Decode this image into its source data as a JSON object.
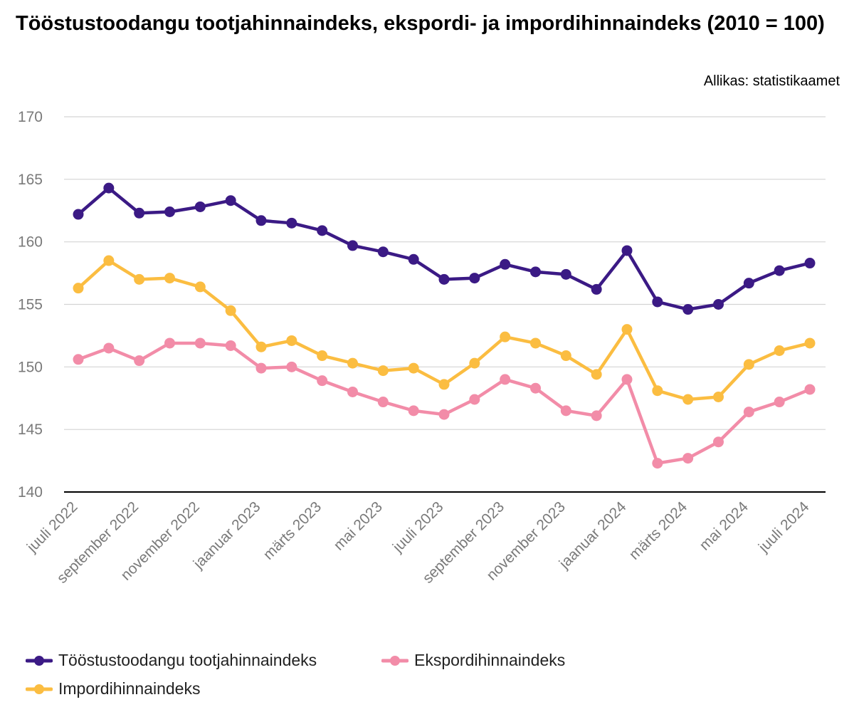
{
  "title": "Tööstustoodangu tootjahinnaindeks, ekspordi- ja impordihinnaindeks (2010 = 100)",
  "source": "Allikas: statistikaamet",
  "chart_data": {
    "type": "line",
    "x": [
      "juuli 2022",
      "august 2022",
      "september 2022",
      "oktoober 2022",
      "november 2022",
      "detsember 2022",
      "jaanuar 2023",
      "veebruar 2023",
      "märts 2023",
      "aprill 2023",
      "mai 2023",
      "juuni 2023",
      "juuli 2023",
      "august 2023",
      "september 2023",
      "oktoober 2023",
      "november 2023",
      "detsember 2023",
      "jaanuar 2024",
      "veebruar 2024",
      "märts 2024",
      "aprill 2024",
      "mai 2024",
      "juuni 2024",
      "juuli 2024"
    ],
    "x_tick_labels": [
      "juuli 2022",
      "september 2022",
      "november 2022",
      "jaanuar 2023",
      "märts 2023",
      "mai 2023",
      "juuli 2023",
      "september 2023",
      "november 2023",
      "jaanuar 2024",
      "märts 2024",
      "mai 2024",
      "juuli 2024"
    ],
    "ylim": [
      140,
      170
    ],
    "yticks": [
      140,
      145,
      150,
      155,
      160,
      165,
      170
    ],
    "grid": true,
    "legend_position": "bottom",
    "series": [
      {
        "name": "Tööstustoodangu tootjahinnaindeks",
        "color": "#3b1a85",
        "values": [
          162.2,
          164.3,
          162.3,
          162.4,
          162.8,
          163.3,
          161.7,
          161.5,
          160.9,
          159.7,
          159.2,
          158.6,
          157.0,
          157.1,
          158.2,
          157.6,
          157.4,
          156.2,
          159.3,
          155.2,
          154.6,
          155.0,
          156.7,
          157.7,
          158.3
        ]
      },
      {
        "name": "Ekspordihinnaindeks",
        "color": "#f28ca8",
        "values": [
          150.6,
          151.5,
          150.5,
          151.9,
          151.9,
          151.7,
          149.9,
          150.0,
          148.9,
          148.0,
          147.2,
          146.5,
          146.2,
          147.4,
          149.0,
          148.3,
          146.5,
          146.1,
          149.0,
          142.3,
          142.7,
          144.0,
          146.4,
          147.2,
          148.2
        ]
      },
      {
        "name": "Impordihinnaindeks",
        "color": "#fbbd41",
        "values": [
          156.3,
          158.5,
          157.0,
          157.1,
          156.4,
          154.5,
          151.6,
          152.1,
          150.9,
          150.3,
          149.7,
          149.9,
          148.6,
          150.3,
          152.4,
          151.9,
          150.9,
          149.4,
          153.0,
          148.1,
          147.4,
          147.6,
          150.2,
          151.3,
          151.9
        ]
      }
    ]
  }
}
